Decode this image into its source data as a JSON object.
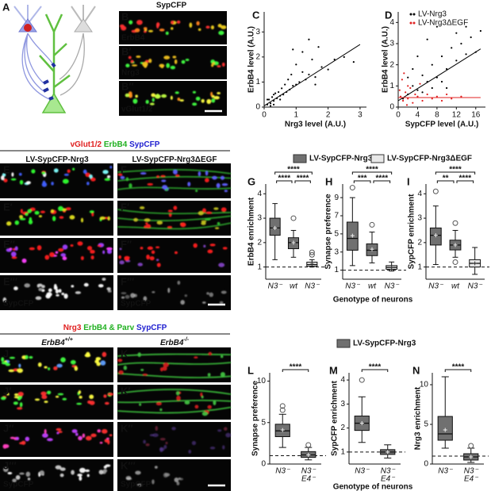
{
  "diagram": {
    "letter": "A"
  },
  "b_panel": {
    "title": "SypCFP",
    "title_color": "#e02020",
    "stain_color": "#40ff40",
    "images": [
      {
        "letter": "B",
        "stain": "ErbB4"
      },
      {
        "letter": "B′",
        "stain": "Nrg3"
      },
      {
        "letter": "B′′",
        "stain": "vGlut1/2"
      }
    ]
  },
  "scatters": [
    {
      "type": "scatter",
      "letter": "C",
      "xlabel": "Nrg3 level (A.U.)",
      "ylabel": "ErbB4 level (A.U.)",
      "xlim": [
        0,
        3.2
      ],
      "ylim": [
        0,
        3.8
      ],
      "xticks": [
        0,
        1,
        2,
        3
      ],
      "yticks": [
        0,
        1,
        2,
        3
      ],
      "series": [
        {
          "color": "#000000",
          "fit": [
            [
              0,
              0.05
            ],
            [
              3,
              2.5
            ]
          ],
          "points": [
            [
              0.1,
              0.1
            ],
            [
              0.2,
              0.15
            ],
            [
              0.15,
              0.3
            ],
            [
              0.3,
              0.25
            ],
            [
              0.25,
              0.4
            ],
            [
              0.4,
              0.35
            ],
            [
              0.35,
              0.55
            ],
            [
              0.5,
              0.45
            ],
            [
              0.45,
              0.6
            ],
            [
              0.6,
              0.5
            ],
            [
              0.55,
              0.75
            ],
            [
              0.7,
              0.6
            ],
            [
              0.65,
              0.9
            ],
            [
              0.8,
              0.7
            ],
            [
              0.75,
              1.1
            ],
            [
              0.9,
              0.85
            ],
            [
              1.0,
              0.9
            ],
            [
              0.85,
              1.3
            ],
            [
              1.1,
              1.0
            ],
            [
              1.2,
              1.4
            ],
            [
              1.3,
              1.1
            ],
            [
              1.0,
              1.7
            ],
            [
              1.4,
              1.3
            ],
            [
              1.5,
              1.9
            ],
            [
              1.6,
              1.2
            ],
            [
              1.2,
              2.2
            ],
            [
              1.8,
              1.6
            ],
            [
              2.0,
              1.5
            ],
            [
              1.7,
              2.4
            ],
            [
              2.2,
              1.9
            ],
            [
              2.5,
              2.0
            ],
            [
              1.4,
              2.7
            ],
            [
              0.9,
              2.3
            ],
            [
              2.8,
              1.8
            ],
            [
              0.3,
              0.1
            ],
            [
              0.1,
              0.3
            ],
            [
              0.2,
              0.05
            ],
            [
              0.5,
              0.3
            ],
            [
              0.3,
              0.5
            ],
            [
              1.6,
              0.9
            ]
          ]
        }
      ]
    },
    {
      "type": "scatter",
      "letter": "D",
      "xlabel": "SypCFP level (A.U.)",
      "ylabel": "ErbB4 level (A.U.)",
      "xlim": [
        0,
        18
      ],
      "ylim": [
        0,
        4.5
      ],
      "xticks": [
        0,
        4,
        8,
        12,
        16
      ],
      "yticks": [
        0,
        1,
        2,
        3,
        4
      ],
      "legend": "upper left",
      "series": [
        {
          "name": "LV-Nrg3",
          "color": "#000000",
          "fit": [
            [
              0,
              0.3
            ],
            [
              17,
              2.75
            ]
          ],
          "points": [
            [
              1,
              0.4
            ],
            [
              2,
              0.6
            ],
            [
              3,
              1.0
            ],
            [
              4,
              0.8
            ],
            [
              5,
              1.5
            ],
            [
              6,
              1.2
            ],
            [
              7,
              2.0
            ],
            [
              8,
              1.4
            ],
            [
              9,
              2.4
            ],
            [
              10,
              1.8
            ],
            [
              11,
              2.8
            ],
            [
              12,
              2.2
            ],
            [
              13,
              3.0
            ],
            [
              14,
              2.5
            ],
            [
              15,
              3.3
            ],
            [
              16,
              2.6
            ],
            [
              17,
              3.6
            ],
            [
              6,
              3.2
            ],
            [
              8,
              3.8
            ],
            [
              10,
              0.9
            ],
            [
              12,
              3.5
            ],
            [
              4,
              2.4
            ],
            [
              3,
              1.8
            ],
            [
              5,
              0.7
            ],
            [
              9,
              1.2
            ],
            [
              14,
              3.8
            ],
            [
              2,
              1.4
            ],
            [
              7,
              0.9
            ]
          ]
        },
        {
          "name": "LV-Nrg3ΔEGF",
          "color": "#e02020",
          "fit": [
            [
              0,
              0.45
            ],
            [
              17,
              0.45
            ]
          ],
          "points": [
            [
              0.5,
              0.5
            ],
            [
              1,
              0.3
            ],
            [
              1.5,
              0.7
            ],
            [
              2,
              0.4
            ],
            [
              2.5,
              0.9
            ],
            [
              3,
              0.2
            ],
            [
              3.5,
              0.6
            ],
            [
              4,
              0.5
            ],
            [
              4.5,
              1.1
            ],
            [
              5,
              0.3
            ],
            [
              6,
              0.6
            ],
            [
              7,
              0.4
            ],
            [
              8,
              0.5
            ],
            [
              9,
              0.3
            ],
            [
              10,
              0.6
            ],
            [
              11,
              0.4
            ],
            [
              13,
              0.5
            ],
            [
              0.8,
              1.3
            ],
            [
              1.2,
              1.6
            ],
            [
              2,
              1.0
            ],
            [
              0.3,
              0.8
            ],
            [
              1.8,
              0.1
            ]
          ]
        }
      ]
    }
  ],
  "e_panel": {
    "title": [
      {
        "text": "vGlut1/2",
        "color": "#e02020"
      },
      {
        "text": "ErbB4",
        "color": "#20b020"
      },
      {
        "text": "SypCFP",
        "color": "#2020d0"
      }
    ],
    "columns": [
      {
        "text": "LV-SypCFP-Nrg3"
      },
      {
        "text": "LV-SypCFP-Nrg3ΔEGF"
      }
    ],
    "rows": [
      [
        "E",
        "F"
      ],
      [
        "E′",
        "F′"
      ],
      [
        "E′′",
        "F′′"
      ],
      [
        "E′′′",
        "F′′′"
      ]
    ],
    "gray_label": "SypCFP"
  },
  "middle_plots": {
    "legend": [
      {
        "name": "LV-SypCFP-Nrg3",
        "color": "#707070"
      },
      {
        "name": "LV-SypCFP-Nrg3ΔEGF",
        "color": "#e8e8e8"
      }
    ],
    "xlabel": "Genotype of neurons",
    "plots": [
      {
        "type": "box",
        "letter": "G",
        "ylabel": "ErbB4 enrichment",
        "ylim": [
          0.5,
          4.4
        ],
        "yticks": [
          1,
          2,
          3,
          4
        ],
        "reference": 1,
        "categories": [
          [
            "N3⁻"
          ],
          [
            "wt"
          ],
          [
            "N3⁻"
          ]
        ],
        "boxes": [
          {
            "series": 0,
            "whislo": 1.3,
            "q1": 2.3,
            "med": 2.6,
            "q3": 3.0,
            "whishi": 3.6,
            "mean": 2.6,
            "fliers": []
          },
          {
            "series": 0,
            "whislo": 1.4,
            "q1": 1.75,
            "med": 2.0,
            "q3": 2.2,
            "whishi": 2.5,
            "mean": 2.0,
            "fliers": [
              3.0
            ]
          },
          {
            "series": 1,
            "whislo": 1.0,
            "q1": 1.03,
            "med": 1.1,
            "q3": 1.2,
            "whishi": 1.3,
            "mean": 1.12,
            "fliers": [
              1.5,
              1.6
            ]
          }
        ],
        "brackets": [
          {
            "from": 0,
            "to": 2,
            "label": "****"
          },
          {
            "from": 0,
            "to": 1,
            "label": "****"
          },
          {
            "from": 1,
            "to": 2,
            "label": "****"
          }
        ]
      },
      {
        "type": "box",
        "letter": "H",
        "ylabel": "Synapse preference",
        "ylim": [
          0,
          10.5
        ],
        "yticks": [
          1,
          3,
          5,
          7,
          9
        ],
        "reference": 1,
        "categories": [
          [
            "N3⁻"
          ],
          [
            "wt"
          ],
          [
            "N3⁻"
          ]
        ],
        "boxes": [
          {
            "series": 0,
            "whislo": 1.5,
            "q1": 3.2,
            "med": 4.5,
            "q3": 6.3,
            "whishi": 9.0,
            "mean": 4.8,
            "fliers": [
              10.1
            ]
          },
          {
            "series": 0,
            "whislo": 1.8,
            "q1": 2.6,
            "med": 3.2,
            "q3": 3.9,
            "whishi": 5.2,
            "mean": 3.3,
            "fliers": [
              6.0
            ]
          },
          {
            "series": 1,
            "whislo": 0.9,
            "q1": 1.1,
            "med": 1.3,
            "q3": 1.5,
            "whishi": 1.9,
            "mean": 1.3,
            "fliers": []
          }
        ],
        "brackets": [
          {
            "from": 0,
            "to": 2,
            "label": "****"
          },
          {
            "from": 0,
            "to": 1,
            "label": "***"
          },
          {
            "from": 1,
            "to": 2,
            "label": "****"
          }
        ]
      },
      {
        "type": "box",
        "letter": "I",
        "ylabel": "SypCFP enrichment",
        "ylim": [
          0.5,
          4.4
        ],
        "yticks": [
          1,
          2,
          3,
          4
        ],
        "reference": 1,
        "categories": [
          [
            "N3⁻"
          ],
          [
            "wt"
          ],
          [
            "N3⁻"
          ]
        ],
        "boxes": [
          {
            "series": 0,
            "whislo": 1.1,
            "q1": 1.9,
            "med": 2.3,
            "q3": 2.6,
            "whishi": 3.5,
            "mean": 2.3,
            "fliers": [
              4.1
            ]
          },
          {
            "series": 0,
            "whislo": 1.4,
            "q1": 1.7,
            "med": 1.9,
            "q3": 2.1,
            "whishi": 2.5,
            "mean": 1.9,
            "fliers": [
              1.2,
              2.8
            ]
          },
          {
            "series": 1,
            "whislo": 0.7,
            "q1": 1.0,
            "med": 1.15,
            "q3": 1.3,
            "whishi": 1.8,
            "mean": 1.15,
            "fliers": []
          }
        ],
        "brackets": [
          {
            "from": 0,
            "to": 2,
            "label": "****"
          },
          {
            "from": 0,
            "to": 1,
            "label": "**"
          },
          {
            "from": 1,
            "to": 2,
            "label": "****"
          }
        ]
      }
    ]
  },
  "j_panel": {
    "title": [
      {
        "text": "Nrg3",
        "color": "#e02020"
      },
      {
        "text": "ErbB4 & Parv",
        "color": "#20b020"
      },
      {
        "text": "SypCFP",
        "color": "#2020d0"
      }
    ],
    "columns": [
      {
        "text": "ErbB4",
        "sup": "+/+"
      },
      {
        "text": "ErbB4",
        "sup": "-/-"
      }
    ],
    "rows": [
      [
        "J",
        "K"
      ],
      [
        "J′",
        "K′"
      ],
      [
        "J′′",
        "K′′"
      ],
      [
        "J′′′",
        "K′′′"
      ]
    ],
    "gray_label": "SypCFP"
  },
  "bottom_plots": {
    "legend": [
      {
        "name": "LV-SypCFP-Nrg3",
        "color": "#707070"
      }
    ],
    "xlabel": "Genotype of neurons",
    "plots": [
      {
        "type": "box",
        "letter": "L",
        "ylabel": "Synapse preference",
        "ylim": [
          0,
          11
        ],
        "yticks": [
          0,
          5,
          10
        ],
        "reference": 1,
        "categories": [
          [
            "N3⁻"
          ],
          [
            "N3⁻",
            "E4⁻"
          ]
        ],
        "boxes": [
          {
            "series": 0,
            "whislo": 2.0,
            "q1": 3.3,
            "med": 4.0,
            "q3": 4.8,
            "whishi": 6.0,
            "mean": 4.1,
            "fliers": [
              6.5,
              7.0
            ]
          },
          {
            "series": 0,
            "whislo": 0.5,
            "q1": 0.8,
            "med": 1.1,
            "q3": 1.5,
            "whishi": 2.0,
            "mean": 1.1,
            "fliers": [
              2.3
            ]
          }
        ],
        "brackets": [
          {
            "from": 0,
            "to": 1,
            "label": "****"
          }
        ]
      },
      {
        "type": "box",
        "letter": "M",
        "ylabel": "SypCFP enrichment",
        "ylim": [
          0.5,
          4.3
        ],
        "yticks": [
          1,
          2,
          3,
          4
        ],
        "reference": 1,
        "categories": [
          [
            "N3⁻"
          ],
          [
            "N3⁻",
            "E4⁻"
          ]
        ],
        "boxes": [
          {
            "series": 0,
            "whislo": 1.4,
            "q1": 1.9,
            "med": 2.2,
            "q3": 2.5,
            "whishi": 3.3,
            "mean": 2.2,
            "fliers": [
              4.0
            ]
          },
          {
            "series": 0,
            "whislo": 0.75,
            "q1": 0.9,
            "med": 1.0,
            "q3": 1.1,
            "whishi": 1.3,
            "mean": 1.0,
            "fliers": []
          }
        ],
        "brackets": [
          {
            "from": 0,
            "to": 1,
            "label": "****"
          }
        ]
      },
      {
        "type": "box",
        "letter": "N",
        "ylabel": "Nrg3 enrichment",
        "ylim": [
          0,
          11.5
        ],
        "yticks": [
          0,
          5,
          10
        ],
        "reference": 1,
        "categories": [
          [
            "N3⁻"
          ],
          [
            "N3⁻",
            "E4⁻"
          ]
        ],
        "boxes": [
          {
            "series": 0,
            "whislo": 2.0,
            "q1": 3.0,
            "med": 3.8,
            "q3": 6.0,
            "whishi": 11.0,
            "mean": 4.3,
            "fliers": []
          },
          {
            "series": 0,
            "whislo": 0.2,
            "q1": 0.5,
            "med": 0.9,
            "q3": 1.3,
            "whishi": 2.0,
            "mean": 0.9,
            "fliers": [
              2.3
            ]
          }
        ],
        "brackets": [
          {
            "from": 0,
            "to": 1,
            "label": "****"
          }
        ]
      }
    ]
  }
}
